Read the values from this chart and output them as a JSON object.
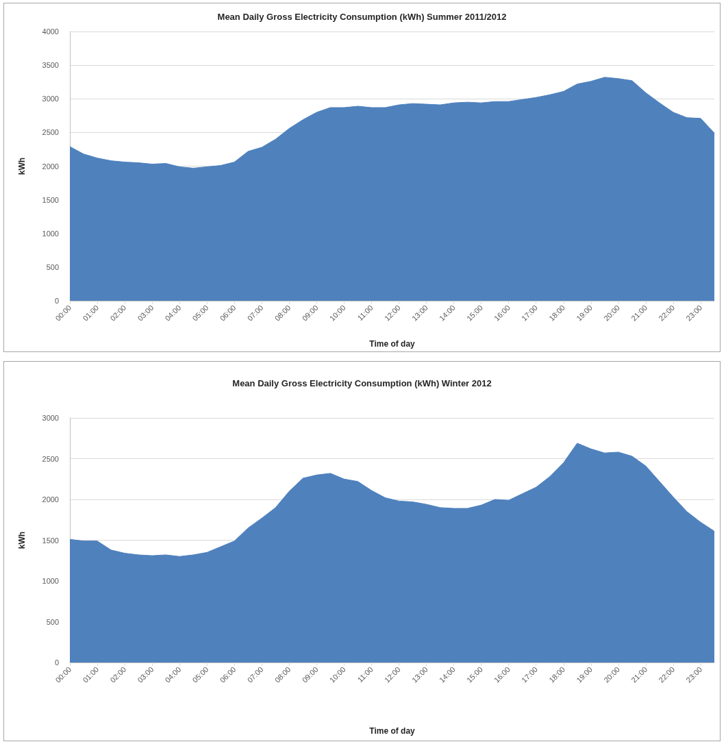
{
  "chart_data": [
    {
      "type": "area",
      "title": "Mean Daily Gross Electricity Consumption (kWh) Summer 2011/2012",
      "xlabel": "Time of day",
      "ylabel": "kWh",
      "color": "#4f81bd",
      "grid": "y",
      "ylim": [
        0,
        4000
      ],
      "yticks": [
        0,
        500,
        1000,
        1500,
        2000,
        2500,
        3000,
        3500,
        4000
      ],
      "categories": [
        "00:00",
        null,
        "01:00",
        null,
        "02:00",
        null,
        "03:00",
        null,
        "04:00",
        null,
        "05:00",
        null,
        "06:00",
        null,
        "07:00",
        null,
        "08:00",
        null,
        "09:00",
        null,
        "10:00",
        null,
        "11:00",
        null,
        "12:00",
        null,
        "13:00",
        null,
        "14:00",
        null,
        "15:00",
        null,
        "16:00",
        null,
        "17:00",
        null,
        "18:00",
        null,
        "19:00",
        null,
        "20:00",
        null,
        "21:00",
        null,
        "22:00",
        null,
        "23:00",
        null
      ],
      "values": [
        2290,
        2180,
        2120,
        2080,
        2060,
        2050,
        2030,
        2040,
        1990,
        1970,
        1990,
        2010,
        2060,
        2220,
        2280,
        2400,
        2560,
        2690,
        2800,
        2870,
        2870,
        2890,
        2870,
        2870,
        2910,
        2930,
        2920,
        2910,
        2940,
        2950,
        2940,
        2960,
        2960,
        2990,
        3020,
        3060,
        3110,
        3220,
        3260,
        3320,
        3300,
        3270,
        3090,
        2940,
        2800,
        2720,
        2710,
        2490
      ]
    },
    {
      "type": "area",
      "title": "Mean Daily Gross Electricity Consumption (kWh) Winter 2012",
      "xlabel": "Time of day",
      "ylabel": "kWh",
      "color": "#4f81bd",
      "grid": "y",
      "ylim": [
        0,
        3000
      ],
      "yticks": [
        0,
        500,
        1000,
        1500,
        2000,
        2500,
        3000
      ],
      "categories": [
        "00:00",
        null,
        "01:00",
        null,
        "02:00",
        null,
        "03:00",
        null,
        "04:00",
        null,
        "05:00",
        null,
        "06:00",
        null,
        "07:00",
        null,
        "08:00",
        null,
        "09:00",
        null,
        "10:00",
        null,
        "11:00",
        null,
        "12:00",
        null,
        "13:00",
        null,
        "14:00",
        null,
        "15:00",
        null,
        "16:00",
        null,
        "17:00",
        null,
        "18:00",
        null,
        "19:00",
        null,
        "20:00",
        null,
        "21:00",
        null,
        "22:00",
        null,
        "23:00",
        null
      ],
      "values": [
        1510,
        1490,
        1490,
        1380,
        1340,
        1320,
        1310,
        1320,
        1300,
        1320,
        1350,
        1420,
        1490,
        1650,
        1770,
        1900,
        2100,
        2260,
        2300,
        2320,
        2250,
        2220,
        2110,
        2020,
        1980,
        1970,
        1940,
        1900,
        1890,
        1890,
        1930,
        2000,
        1990,
        2070,
        2150,
        2280,
        2450,
        2690,
        2620,
        2570,
        2580,
        2530,
        2410,
        2220,
        2030,
        1850,
        1720,
        1610
      ]
    }
  ]
}
